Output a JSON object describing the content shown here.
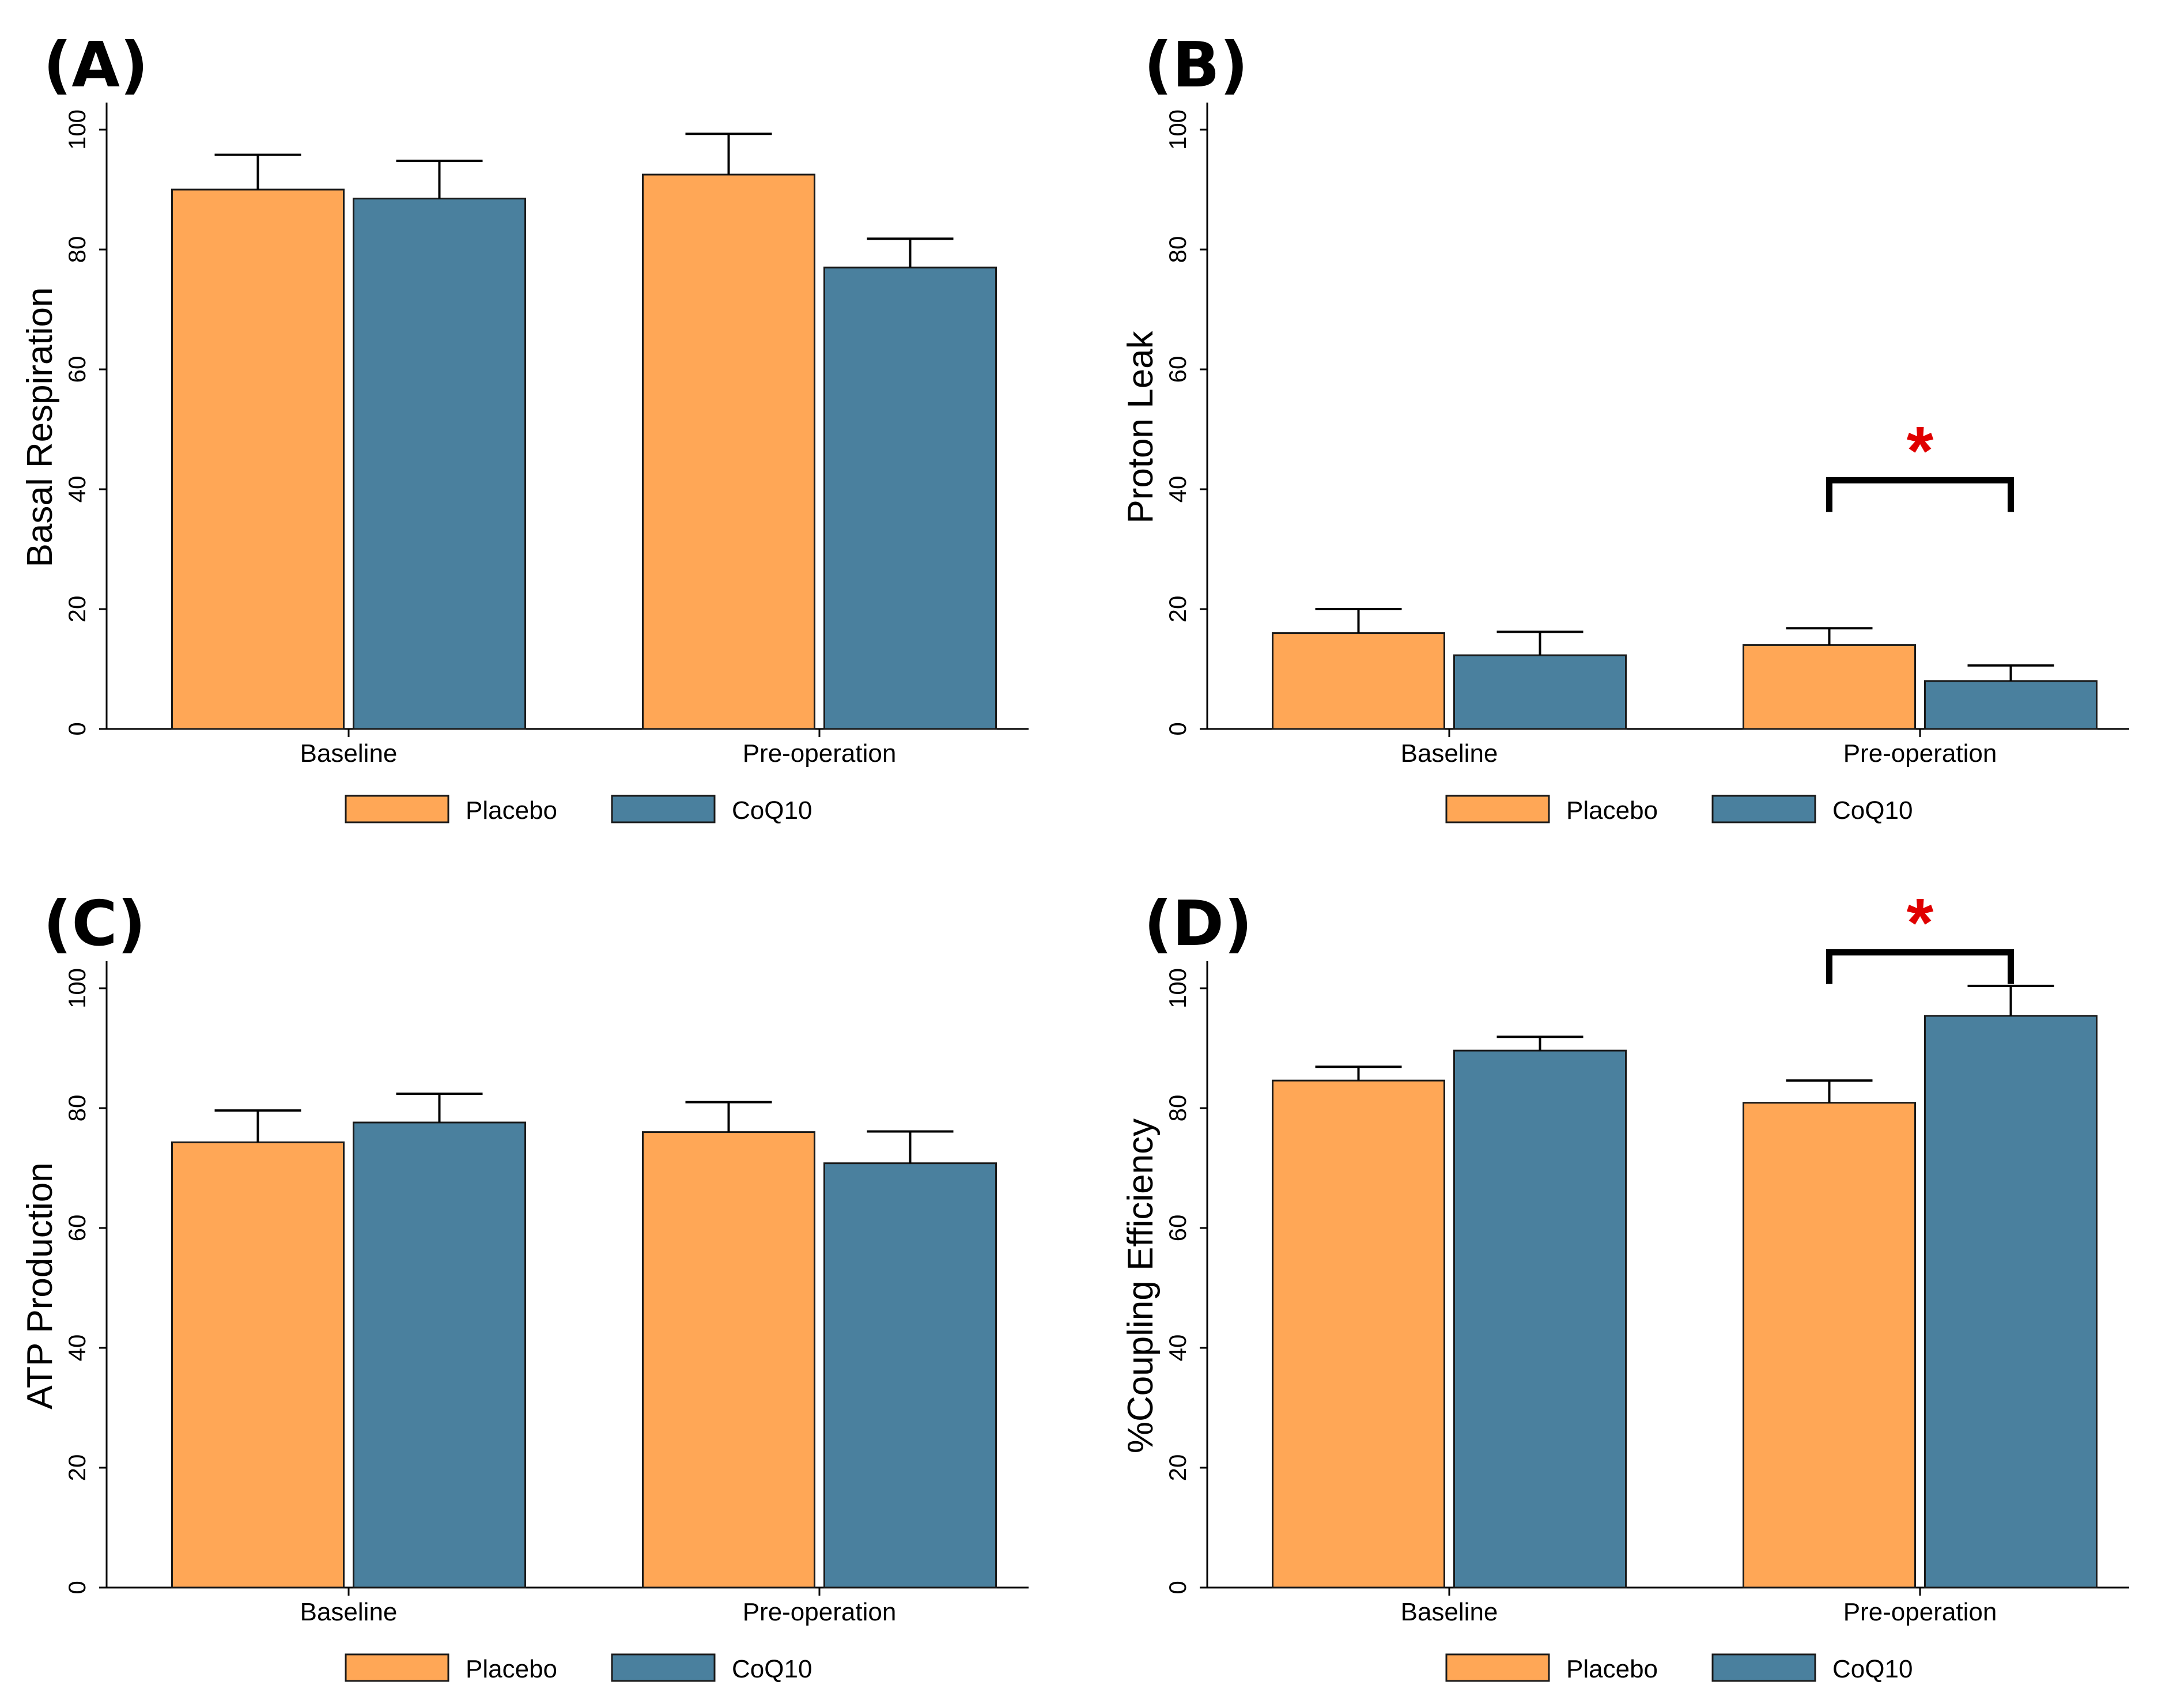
{
  "colors": {
    "placebo": "#FFA756",
    "coq10": "#4A809E",
    "significance": "#E00000",
    "axis": "#000000"
  },
  "legend": {
    "series": [
      "Placebo",
      "CoQ10"
    ],
    "placement": "bottom-center"
  },
  "chart_data": [
    {
      "panel_label": "(A)",
      "type": "bar",
      "ylabel": "Basal Respiration",
      "xlabel": "",
      "categories": [
        "Baseline",
        "Pre-operation"
      ],
      "ylim": [
        0,
        105
      ],
      "yticks": [
        0,
        20,
        40,
        60,
        80,
        100
      ],
      "ytick_labels": [
        "0",
        "20",
        "40",
        "60",
        "80",
        "100"
      ],
      "series": [
        {
          "name": "Placebo",
          "values": [
            90,
            92.5
          ],
          "errors": [
            5.8,
            6.8
          ]
        },
        {
          "name": "CoQ10",
          "values": [
            88.5,
            77
          ],
          "errors": [
            6.3,
            4.8
          ]
        }
      ],
      "significance": []
    },
    {
      "panel_label": "(B)",
      "type": "bar",
      "ylabel": "Proton Leak",
      "xlabel": "",
      "categories": [
        "Baseline",
        "Pre-operation"
      ],
      "ylim": [
        0,
        105
      ],
      "yticks": [
        0,
        20,
        40,
        60,
        80,
        100
      ],
      "ytick_labels": [
        "0",
        "20",
        "40",
        "60",
        "80",
        "100"
      ],
      "series": [
        {
          "name": "Placebo",
          "values": [
            16,
            14
          ],
          "errors": [
            4,
            2.8
          ]
        },
        {
          "name": "CoQ10",
          "values": [
            12.3,
            8
          ],
          "errors": [
            3.9,
            2.6
          ]
        }
      ],
      "significance": [
        {
          "category": "Pre-operation",
          "label": "*",
          "level": 41.5
        }
      ]
    },
    {
      "panel_label": "(C)",
      "type": "bar",
      "ylabel": "ATP Production",
      "xlabel": "",
      "categories": [
        "Baseline",
        "Pre-operation"
      ],
      "ylim": [
        0,
        105
      ],
      "yticks": [
        0,
        20,
        40,
        60,
        80,
        100
      ],
      "ytick_labels": [
        "0",
        "20",
        "40",
        "60",
        "80",
        "100"
      ],
      "series": [
        {
          "name": "Placebo",
          "values": [
            74.3,
            76
          ],
          "errors": [
            5.3,
            5
          ]
        },
        {
          "name": "CoQ10",
          "values": [
            77.6,
            70.8
          ],
          "errors": [
            4.8,
            5.3
          ]
        }
      ],
      "significance": []
    },
    {
      "panel_label": "(D)",
      "type": "bar",
      "ylabel": "%Coupling Efficiency",
      "xlabel": "",
      "categories": [
        "Baseline",
        "Pre-operation"
      ],
      "ylim": [
        0,
        105
      ],
      "yticks": [
        0,
        20,
        40,
        60,
        80,
        100
      ],
      "ytick_labels": [
        "0",
        "20",
        "40",
        "60",
        "80",
        "100"
      ],
      "series": [
        {
          "name": "Placebo",
          "values": [
            84.6,
            80.9
          ],
          "errors": [
            2.3,
            3.7
          ]
        },
        {
          "name": "CoQ10",
          "values": [
            89.6,
            95.4
          ],
          "errors": [
            2.3,
            5
          ]
        }
      ],
      "significance": [
        {
          "category": "Pre-operation",
          "label": "*",
          "level": 106
        }
      ]
    }
  ]
}
